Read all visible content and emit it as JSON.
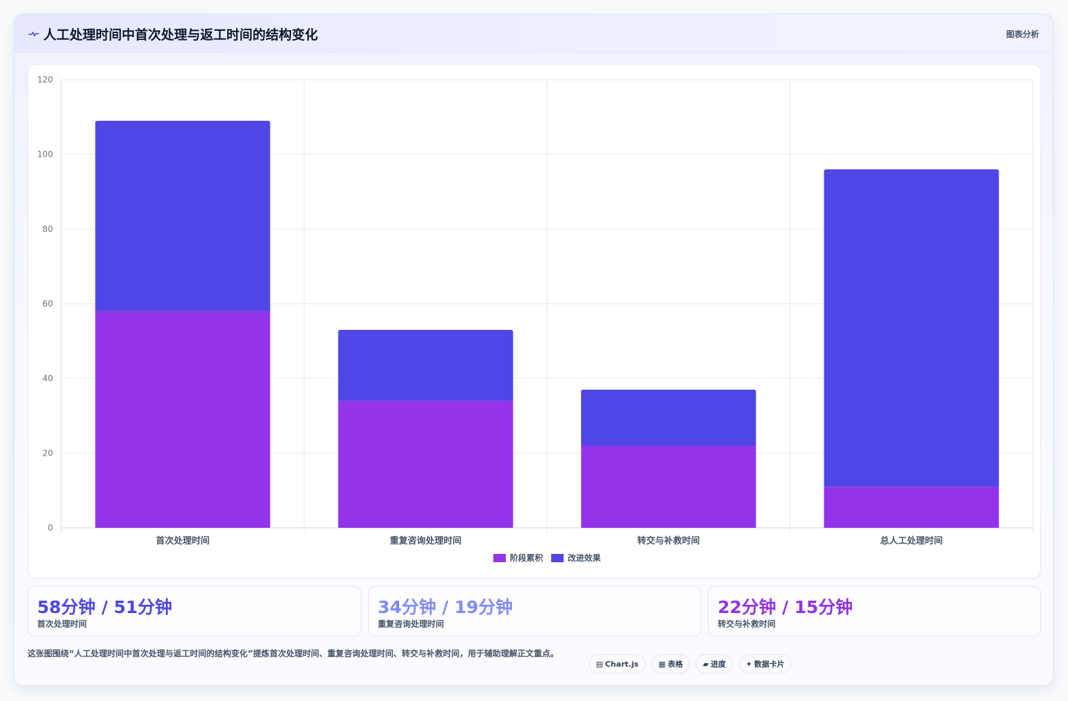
{
  "header": {
    "title": "人工处理时间中首次处理与返工时间的结构变化",
    "tag": "图表分析"
  },
  "chart_data": {
    "type": "bar",
    "stacked": true,
    "categories": [
      "首次处理时间",
      "重复咨询处理时间",
      "转交与补救时间",
      "总人工处理时间"
    ],
    "series": [
      {
        "name": "阶段累积",
        "color": "#9333ea",
        "values": [
          58,
          34,
          22,
          11
        ]
      },
      {
        "name": "改进效果",
        "color": "#4f46e5",
        "values": [
          51,
          19,
          15,
          85
        ]
      }
    ],
    "ylim": [
      0,
      120
    ],
    "yticks": [
      0,
      20,
      40,
      60,
      80,
      100,
      120
    ],
    "grid": true,
    "legend": "bottom"
  },
  "stats": [
    {
      "value": "58分钟 / 51分钟",
      "label": "首次处理时间",
      "color": "#4f46e5"
    },
    {
      "value": "34分钟 / 19分钟",
      "label": "重复咨询处理时间",
      "color": "#818cf8"
    },
    {
      "value": "22分钟 / 15分钟",
      "label": "转交与补救时间",
      "color": "#9333ea"
    }
  ],
  "footer": {
    "text": "这张图围绕“人工处理时间中首次处理与返工时间的结构变化”提炼首次处理时间、重复咨询处理时间、转交与补救时间，用于辅助理解正文重点。"
  },
  "chips": [
    {
      "icon": "▤",
      "icon_name": "chart-icon",
      "label": "Chart.js"
    },
    {
      "icon": "▦",
      "icon_name": "table-icon",
      "label": "表格"
    },
    {
      "icon": "▰",
      "icon_name": "progress-icon",
      "label": "进度"
    },
    {
      "icon": "✦",
      "icon_name": "sparkle-icon",
      "label": "数据卡片"
    }
  ]
}
